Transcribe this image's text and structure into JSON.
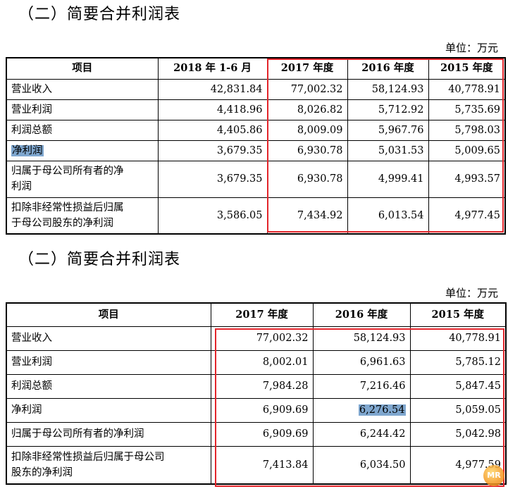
{
  "table1": {
    "title": "（二）简要合并利润表",
    "unit": "单位：万元",
    "headers": [
      "项目",
      "2018 年 1-6 月",
      "2017 年度",
      "2016 年度",
      "2015 年度"
    ],
    "rows": [
      {
        "label": "营业收入",
        "values": [
          "42,831.84",
          "77,002.32",
          "58,124.93",
          "40,778.91"
        ]
      },
      {
        "label": "营业利润",
        "values": [
          "4,418.96",
          "8,026.82",
          "5,712.92",
          "5,735.69"
        ]
      },
      {
        "label": "利润总额",
        "values": [
          "4,405.86",
          "8,009.09",
          "5,967.76",
          "5,798.03"
        ]
      },
      {
        "label": "净利润",
        "values": [
          "3,679.35",
          "6,930.78",
          "5,031.53",
          "5,009.65"
        ]
      },
      {
        "label_l1": "归属于母公司所有者的净",
        "label_l2": "利润",
        "values": [
          "3,679.35",
          "6,930.78",
          "4,999.41",
          "4,993.57"
        ]
      },
      {
        "label_l1": "扣除非经常性损益后归属",
        "label_l2": "于母公司股东的净利润",
        "values": [
          "3,586.05",
          "7,434.92",
          "6,013.54",
          "4,977.45"
        ]
      }
    ]
  },
  "table2": {
    "title": "（二）简要合并利润表",
    "unit": "单位：万元",
    "headers": [
      "项目",
      "2017 年度",
      "2016 年度",
      "2015 年度"
    ],
    "rows": [
      {
        "label": "营业收入",
        "values": [
          "77,002.32",
          "58,124.93",
          "40,778.91"
        ]
      },
      {
        "label": "营业利润",
        "values": [
          "8,002.01",
          "6,961.63",
          "5,785.12"
        ]
      },
      {
        "label": "利润总额",
        "values": [
          "7,984.28",
          "7,216.46",
          "5,847.45"
        ]
      },
      {
        "label": "净利润",
        "values": [
          "6,909.69",
          "6,276.54",
          "5,059.05"
        ]
      },
      {
        "label": "归属于母公司所有者的净利润",
        "values": [
          "6,909.69",
          "6,244.42",
          "5,042.98"
        ]
      },
      {
        "label_l1": "扣除非经常性损益后归属于母公司",
        "label_l2": "股东的净利润",
        "values": [
          "7,413.84",
          "6,034.50",
          "4,977.59"
        ]
      }
    ]
  },
  "watermark": "MR"
}
